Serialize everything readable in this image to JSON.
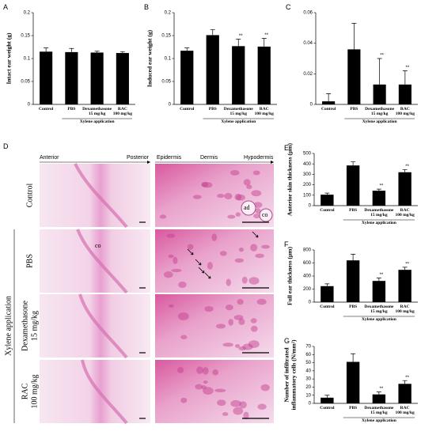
{
  "chart_data": [
    {
      "type": "bar",
      "panel_label": "A",
      "ylabel": "Intact ear weight (g)",
      "categories": [
        "Control",
        "PBS",
        "Dexamethasone\n15 mg/kg",
        "RAC\n100 mg/kg"
      ],
      "values": [
        0.115,
        0.114,
        0.113,
        0.112
      ],
      "errors": [
        0.008,
        0.008,
        0.003,
        0.003
      ],
      "significance": [
        null,
        null,
        null,
        null
      ],
      "group_label": "Xylene application",
      "color": "#000000",
      "ylim": [
        0,
        0.2
      ],
      "yticks": [
        0,
        0.05,
        0.1,
        0.15,
        0.2
      ]
    },
    {
      "type": "bar",
      "panel_label": "B",
      "ylabel": "Induced ear weight (g)",
      "categories": [
        "Control",
        "PBS",
        "Dexamethasone\n15 mg/kg",
        "RAC\n100 mg/kg"
      ],
      "values": [
        0.117,
        0.151,
        0.127,
        0.126
      ],
      "errors": [
        0.006,
        0.012,
        0.015,
        0.018
      ],
      "significance": [
        null,
        null,
        "**",
        "**"
      ],
      "group_label": "Xylene application",
      "color": "#000000",
      "ylim": [
        0,
        0.2
      ],
      "yticks": [
        0,
        0.05,
        0.1,
        0.15,
        0.2
      ]
    },
    {
      "type": "bar",
      "panel_label": "C",
      "categories": [
        "Control",
        "PBS",
        "Dexamethasone\n15 mg/kg",
        "RAC\n100 mg/kg"
      ],
      "values": [
        0.002,
        0.036,
        0.013,
        0.013
      ],
      "errors": [
        0.005,
        0.017,
        0.017,
        0.009
      ],
      "significance": [
        null,
        null,
        "**",
        "**"
      ],
      "group_label": "Xylene application",
      "color": "#000000",
      "ylim": [
        0,
        0.06
      ],
      "yticks": [
        0,
        0.02,
        0.04,
        0.06
      ]
    },
    {
      "type": "bar",
      "panel_label": "E",
      "ylabel": "Anterior skin thickness (µm)",
      "categories": [
        "Control",
        "PBS",
        "Dexamethasone\n15 mg/kg",
        "RAC\n100 mg/kg"
      ],
      "values": [
        105,
        385,
        143,
        320
      ],
      "errors": [
        15,
        35,
        15,
        25
      ],
      "significance": [
        null,
        null,
        "**",
        "**"
      ],
      "group_label": "Xylene application",
      "color": "#000000",
      "ylim": [
        0,
        500
      ],
      "yticks": [
        0,
        100,
        200,
        300,
        400,
        500
      ]
    },
    {
      "type": "bar",
      "panel_label": "F",
      "ylabel": "Full ear thickness (µm)",
      "categories": [
        "Control",
        "PBS",
        "Dexamethasone\n15 mg/kg",
        "RAC\n100 mg/kg"
      ],
      "values": [
        245,
        640,
        325,
        495
      ],
      "errors": [
        35,
        95,
        45,
        40
      ],
      "significance": [
        null,
        null,
        "**",
        "**"
      ],
      "group_label": "Xylene application",
      "color": "#000000",
      "ylim": [
        0,
        800
      ],
      "yticks": [
        0,
        200,
        400,
        600,
        800
      ]
    },
    {
      "type": "bar",
      "panel_label": "G",
      "ylabel": "Number of infiltrated\ninflammatory cells (N/mm²)",
      "categories": [
        "Control",
        "PBS",
        "Dexamethasone\n15 mg/kg",
        "RAC\n100 mg/kg"
      ],
      "values": [
        7,
        51,
        11,
        24
      ],
      "errors": [
        3,
        10,
        3,
        4
      ],
      "significance": [
        null,
        null,
        "**",
        "**"
      ],
      "group_label": "Xylene application",
      "color": "#000000",
      "ylim": [
        0,
        70
      ],
      "yticks": [
        0,
        10,
        20,
        30,
        40,
        50,
        60,
        70
      ]
    }
  ],
  "histology": {
    "panel_label": "D",
    "left_header": [
      "Anterior",
      "Posterior"
    ],
    "right_header": [
      "Epidermis",
      "Dermis",
      "Hypodermis"
    ],
    "rows": [
      "Control",
      "PBS",
      "Dexamethasone\n15 mg/kg",
      "RAC\n100 mg/kg"
    ],
    "group_label": "Xylene application",
    "control_labels": [
      "ad",
      "co"
    ],
    "pbs_label": "co"
  }
}
